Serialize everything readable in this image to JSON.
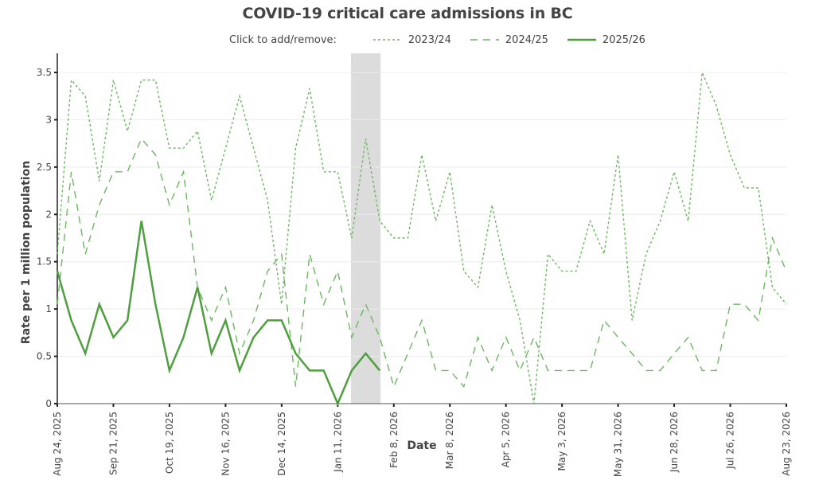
{
  "chart_data": {
    "type": "line",
    "title": "COVID-19 critical care admissions in BC",
    "xlabel": "Date",
    "ylabel": "Rate per 1 million population",
    "ylim": [
      0,
      3.7
    ],
    "yticks": [
      0,
      0.5,
      1,
      1.5,
      2,
      2.5,
      3,
      3.5
    ],
    "ytick_labels": [
      "0",
      "0.5",
      "1",
      "1.5",
      "2",
      "2.5",
      "3",
      "3.5"
    ],
    "x_weeks": 53,
    "xticks_week_index": [
      0,
      4,
      8,
      12,
      16,
      20,
      24,
      28,
      32,
      36,
      40,
      44,
      48,
      52
    ],
    "xtick_labels": [
      "Aug 24, 2025",
      "Sep 21, 2025",
      "Oct 19, 2025",
      "Nov 16, 2025",
      "Dec 14, 2025",
      "Jan 11, 2026",
      "Feb 8, 2026",
      "Mar 8, 2026",
      "Apr 5, 2026",
      "May 3, 2026",
      "May 31, 2026",
      "Jun 28, 2026",
      "Jul 26, 2026",
      "Aug 23, 2026"
    ],
    "grid": true,
    "legend_position": "top",
    "legend_title": "Click to add/remove:",
    "highlight_band_weeks": [
      21,
      23
    ],
    "series": [
      {
        "name": "2023/24",
        "style": "dotted",
        "color": "#6ab85e",
        "values": [
          1.58,
          3.42,
          3.25,
          2.35,
          3.42,
          2.88,
          3.42,
          3.42,
          2.7,
          2.7,
          2.88,
          2.15,
          2.7,
          3.25,
          2.7,
          2.15,
          1.05,
          2.7,
          3.33,
          2.45,
          2.45,
          1.75,
          2.8,
          1.93,
          1.75,
          1.75,
          2.63,
          1.93,
          2.45,
          1.4,
          1.23,
          2.1,
          1.4,
          0.88,
          0.0,
          1.58,
          1.4,
          1.4,
          1.93,
          1.58,
          2.63,
          0.88,
          1.58,
          1.93,
          2.45,
          1.93,
          3.5,
          3.15,
          2.63,
          2.28,
          2.28,
          1.23,
          1.05
        ]
      },
      {
        "name": "2024/25",
        "style": "dashed",
        "color": "#6ab85e",
        "values": [
          1.05,
          2.45,
          1.58,
          2.1,
          2.45,
          2.45,
          2.8,
          2.63,
          2.1,
          2.45,
          1.23,
          0.88,
          1.23,
          0.53,
          0.88,
          1.4,
          1.58,
          0.18,
          1.58,
          1.05,
          1.4,
          0.7,
          1.05,
          0.7,
          0.18,
          0.53,
          0.88,
          0.35,
          0.35,
          0.18,
          0.7,
          0.35,
          0.7,
          0.35,
          0.7,
          0.35,
          0.35,
          0.35,
          0.35,
          0.88,
          0.7,
          0.53,
          0.35,
          0.35,
          0.53,
          0.7,
          0.35,
          0.35,
          1.05,
          1.05,
          0.88,
          1.75,
          1.4
        ]
      },
      {
        "name": "2025/26",
        "style": "solid",
        "color": "#4f9e3f",
        "values": [
          1.4,
          0.88,
          0.53,
          1.05,
          0.7,
          0.88,
          1.93,
          1.05,
          0.35,
          0.7,
          1.23,
          0.53,
          0.88,
          0.35,
          0.7,
          0.88,
          0.88,
          0.53,
          0.35,
          0.35,
          0.0,
          0.35,
          0.53,
          0.35
        ]
      }
    ]
  }
}
